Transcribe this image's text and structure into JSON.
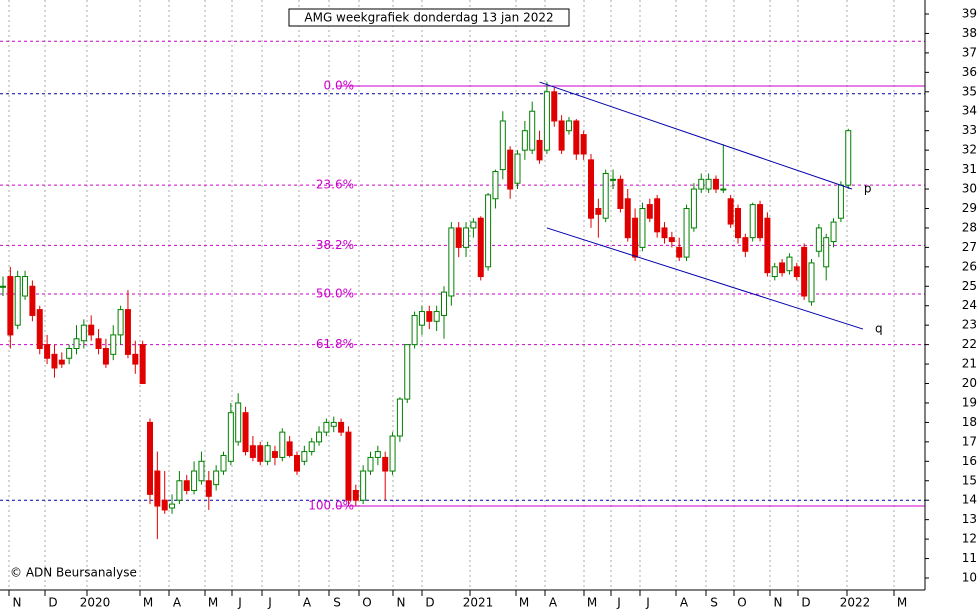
{
  "chart_data": {
    "type": "candlestick",
    "title": "AMG weekgrafiek donderdag 13 jan 2022",
    "copyright": "© ADN Beursanalyse",
    "ylim": [
      10,
      39
    ],
    "yticks": [
      10,
      11,
      12,
      13,
      14,
      15,
      16,
      17,
      18,
      19,
      20,
      21,
      22,
      23,
      24,
      25,
      26,
      27,
      28,
      29,
      30,
      31,
      32,
      33,
      34,
      35,
      36,
      37,
      38,
      39
    ],
    "x_labels": [
      "N",
      "D",
      "2020",
      "M",
      "A",
      "M",
      "J",
      "J",
      "A",
      "S",
      "O",
      "N",
      "D",
      "2021",
      "M",
      "A",
      "M",
      "J",
      "J",
      "A",
      "S",
      "O",
      "N",
      "D",
      "2022",
      "M"
    ],
    "up_color": "#008000",
    "down_color": "#e00000",
    "candles": [
      [
        25,
        25.5,
        24.5,
        25
      ],
      [
        25.5,
        26,
        21.8,
        22.5
      ],
      [
        23,
        25.8,
        22.8,
        25.5
      ],
      [
        24.5,
        25.8,
        24.3,
        25.5
      ],
      [
        25,
        25.3,
        23.2,
        23.5
      ],
      [
        23.8,
        24,
        21.5,
        21.8
      ],
      [
        22,
        22.5,
        21,
        21.3
      ],
      [
        21.5,
        22,
        20.3,
        20.8
      ],
      [
        21.2,
        21.6,
        20.8,
        21
      ],
      [
        21.3,
        22,
        21,
        21.8
      ],
      [
        21.8,
        23,
        21.5,
        22.3
      ],
      [
        22.2,
        23.3,
        21.8,
        23
      ],
      [
        23,
        23.5,
        22.2,
        22.5
      ],
      [
        22.3,
        22.8,
        21.5,
        21.8
      ],
      [
        21.8,
        22.3,
        20.8,
        21
      ],
      [
        21.5,
        23,
        21.2,
        22.5
      ],
      [
        22.5,
        24,
        22,
        23.8
      ],
      [
        23.8,
        24.8,
        21.3,
        21.5
      ],
      [
        21.5,
        22.2,
        20.5,
        21
      ],
      [
        22,
        22.2,
        20,
        20
      ],
      [
        18,
        18.2,
        13.8,
        14.3
      ],
      [
        15.5,
        16.5,
        12,
        13.7
      ],
      [
        14,
        15.5,
        13.3,
        13.5
      ],
      [
        13.6,
        14.3,
        13.3,
        13.8
      ],
      [
        14,
        15.5,
        13.8,
        15
      ],
      [
        15,
        15.3,
        14.3,
        14.5
      ],
      [
        14.5,
        16,
        14.3,
        15.5
      ],
      [
        15,
        16.5,
        14.8,
        16
      ],
      [
        15,
        15.5,
        13.5,
        14.2
      ],
      [
        14.8,
        15.8,
        14.5,
        15.5
      ],
      [
        15.5,
        16.5,
        15.3,
        16.3
      ],
      [
        16,
        19,
        15.8,
        18.5
      ],
      [
        17,
        19.5,
        16.8,
        19
      ],
      [
        18.5,
        18.8,
        16.3,
        16.5
      ],
      [
        16.8,
        17.3,
        16,
        16.2
      ],
      [
        16.8,
        17,
        15.8,
        16
      ],
      [
        16,
        17,
        15.8,
        16.8
      ],
      [
        16.5,
        16.8,
        15.8,
        16.2
      ],
      [
        16.2,
        17.7,
        16,
        17.5
      ],
      [
        17,
        17.3,
        16.2,
        16.3
      ],
      [
        16.3,
        16.5,
        15.3,
        15.5
      ],
      [
        16,
        16.8,
        15.8,
        16.5
      ],
      [
        16.5,
        17.2,
        16.3,
        17
      ],
      [
        17,
        17.8,
        16.8,
        17.5
      ],
      [
        17.5,
        18.2,
        17.3,
        18
      ],
      [
        17.8,
        18.3,
        17.5,
        18
      ],
      [
        18,
        18.2,
        17.3,
        17.5
      ],
      [
        17.5,
        17.8,
        13.7,
        14
      ],
      [
        14.5,
        14.8,
        13.7,
        14
      ],
      [
        14,
        15.8,
        13.8,
        15.5
      ],
      [
        15.5,
        16.5,
        15.3,
        16.2
      ],
      [
        16.2,
        16.8,
        15.8,
        16.5
      ],
      [
        16.2,
        16.5,
        14,
        15.5
      ],
      [
        15.5,
        17.5,
        15.3,
        17.3
      ],
      [
        17.3,
        19.3,
        17,
        19.2
      ],
      [
        19.2,
        22,
        19,
        22
      ],
      [
        22,
        23.7,
        21.8,
        23.5
      ],
      [
        23,
        24,
        22.5,
        23.7
      ],
      [
        23.7,
        24,
        22.8,
        23.2
      ],
      [
        23.2,
        24,
        22.7,
        23.7
      ],
      [
        23.5,
        25,
        22.3,
        24.7
      ],
      [
        24.5,
        28.3,
        24,
        28
      ],
      [
        28,
        28.3,
        26.5,
        27
      ],
      [
        27,
        28.3,
        26.5,
        28
      ],
      [
        28,
        28.5,
        27.5,
        28.3
      ],
      [
        28.5,
        28.6,
        25.3,
        25.5
      ],
      [
        26,
        29.8,
        25.8,
        29.7
      ],
      [
        29.5,
        31,
        29,
        30.9
      ],
      [
        31,
        34,
        30.5,
        33.5
      ],
      [
        32,
        32.2,
        29.5,
        30
      ],
      [
        30.3,
        32,
        30,
        31.8
      ],
      [
        32,
        33.5,
        31.5,
        33
      ],
      [
        32,
        34.5,
        31.8,
        34
      ],
      [
        32.5,
        33,
        31.3,
        31.5
      ],
      [
        32,
        35.5,
        31.8,
        35
      ],
      [
        35,
        35.2,
        33.2,
        33.5
      ],
      [
        33.5,
        33.8,
        31.8,
        32
      ],
      [
        33,
        33.7,
        32.8,
        33.5
      ],
      [
        33.5,
        33.6,
        31.5,
        31.8
      ],
      [
        32.8,
        33,
        31.5,
        31.8
      ],
      [
        31.5,
        31.8,
        28,
        28.5
      ],
      [
        29,
        29.5,
        27.5,
        28.7
      ],
      [
        28.5,
        31,
        28.3,
        30.8
      ],
      [
        30.5,
        31,
        30,
        30.5
      ],
      [
        30.5,
        30.7,
        28.8,
        29
      ],
      [
        29.5,
        30,
        27.3,
        27.5
      ],
      [
        28.5,
        29,
        26.3,
        26.5
      ],
      [
        27,
        29.3,
        26.8,
        29
      ],
      [
        29.2,
        29.5,
        28.3,
        28.5
      ],
      [
        29.5,
        29.7,
        27.5,
        27.8
      ],
      [
        28,
        28.3,
        27.2,
        27.5
      ],
      [
        27.5,
        27.8,
        27,
        27.3
      ],
      [
        27,
        27.5,
        26.3,
        26.5
      ],
      [
        26.5,
        29.2,
        26.3,
        29
      ],
      [
        28,
        30.3,
        27.8,
        30
      ],
      [
        30,
        30.8,
        29.8,
        30.5
      ],
      [
        30,
        30.8,
        29.8,
        30.5
      ],
      [
        30.5,
        30.7,
        29.8,
        30
      ],
      [
        30,
        32.3,
        29.8,
        30
      ],
      [
        29.5,
        29.7,
        28,
        28.2
      ],
      [
        29,
        29.2,
        27.2,
        27.5
      ],
      [
        27.5,
        27.7,
        26.5,
        26.8
      ],
      [
        27.5,
        29.3,
        27.3,
        29.2
      ],
      [
        29.2,
        29.4,
        27.3,
        27.5
      ],
      [
        28.5,
        28.8,
        25.5,
        25.7
      ],
      [
        25.5,
        26.2,
        25.3,
        26
      ],
      [
        26.2,
        26.4,
        25.5,
        25.7
      ],
      [
        25.8,
        26.7,
        25.6,
        26.5
      ],
      [
        26,
        26.2,
        25.3,
        25.5
      ],
      [
        27,
        27.2,
        24.3,
        24.5
      ],
      [
        24.2,
        26.4,
        24,
        26.2
      ],
      [
        26.8,
        28.2,
        26.5,
        28
      ],
      [
        26,
        27.7,
        25.3,
        27.5
      ],
      [
        27.3,
        28.5,
        27,
        28.3
      ],
      [
        28.5,
        30.4,
        28.3,
        30.2
      ],
      [
        30.2,
        33.1,
        30,
        33
      ]
    ],
    "hlines": [
      {
        "value": 37.6,
        "color": "#cc00cc",
        "dash": true
      },
      {
        "value": 34.9,
        "color": "#0000aa",
        "dash": true
      },
      {
        "value": 14.0,
        "color": "#0000aa",
        "dash": true
      }
    ],
    "fib_levels": [
      {
        "label": "0.0%",
        "value": 35.3,
        "solid": true
      },
      {
        "label": "23.6%",
        "value": 30.2
      },
      {
        "label": "38.2%",
        "value": 27.1
      },
      {
        "label": "50.0%",
        "value": 24.6
      },
      {
        "label": "61.8%",
        "value": 22.0
      },
      {
        "label": "100.0%",
        "value": 13.7,
        "solid": true
      }
    ],
    "trendlines": [
      {
        "label": "p",
        "x": [
          73,
          115.5
        ],
        "y": [
          35.5,
          30.0
        ]
      },
      {
        "label": "q",
        "x": [
          74,
          117
        ],
        "y": [
          28.0,
          22.8
        ]
      }
    ]
  }
}
